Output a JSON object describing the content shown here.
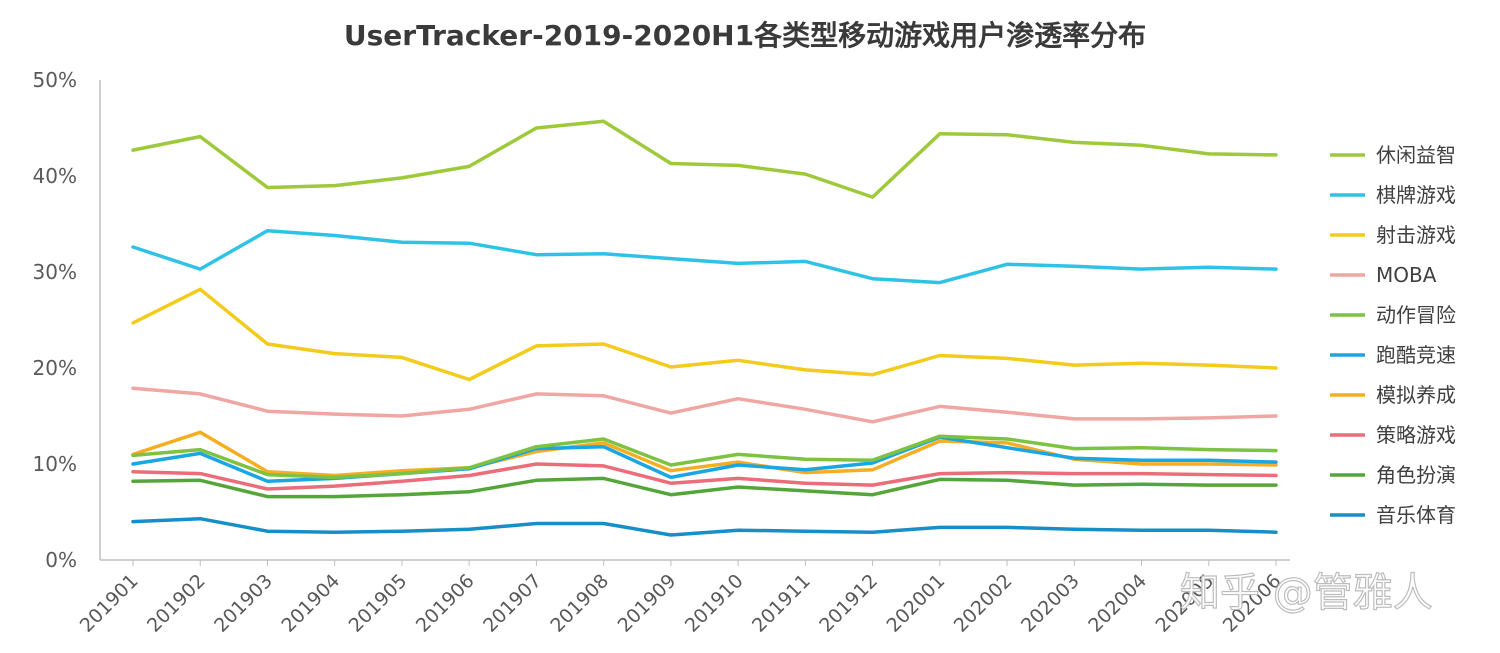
{
  "watermark": "知乎 @管雅人",
  "chart_data": {
    "type": "line",
    "title": "UserTracker-2019-2020H1各类型移动游戏用户渗透率分布",
    "xlabel": "",
    "ylabel": "",
    "ylim": [
      0,
      50
    ],
    "y_ticks": [
      "0%",
      "10%",
      "20%",
      "30%",
      "40%",
      "50%"
    ],
    "grid": false,
    "legend_position": "right",
    "categories": [
      "201901",
      "201902",
      "201903",
      "201904",
      "201905",
      "201906",
      "201907",
      "201908",
      "201909",
      "201910",
      "201911",
      "201912",
      "202001",
      "202002",
      "202003",
      "202004",
      "202005",
      "202006"
    ],
    "series": [
      {
        "name": "休闲益智",
        "color": "#9dc93b",
        "values": [
          42.7,
          44.1,
          38.8,
          39.0,
          39.8,
          41.0,
          45.0,
          45.7,
          41.3,
          41.1,
          40.2,
          37.8,
          44.4,
          44.3,
          43.5,
          43.2,
          42.3,
          42.2
        ]
      },
      {
        "name": "棋牌游戏",
        "color": "#2ec3e6",
        "values": [
          32.6,
          30.3,
          34.3,
          33.8,
          33.1,
          33.0,
          31.8,
          31.9,
          31.4,
          30.9,
          31.1,
          29.3,
          28.9,
          30.8,
          30.6,
          30.3,
          30.5,
          30.3
        ]
      },
      {
        "name": "射击游戏",
        "color": "#f2cb1c",
        "values": [
          24.7,
          28.2,
          22.5,
          21.5,
          21.1,
          18.8,
          22.3,
          22.5,
          20.1,
          20.8,
          19.8,
          19.3,
          21.3,
          21.0,
          20.3,
          20.5,
          20.3,
          20.0
        ]
      },
      {
        "name": "MOBA",
        "color": "#f0a6a2",
        "values": [
          17.9,
          17.3,
          15.5,
          15.2,
          15.0,
          15.7,
          17.3,
          17.1,
          15.3,
          16.8,
          15.7,
          14.4,
          16.0,
          15.4,
          14.7,
          14.7,
          14.8,
          15.0
        ]
      },
      {
        "name": "动作冒险",
        "color": "#7ec242",
        "values": [
          10.9,
          11.5,
          8.9,
          8.6,
          9.0,
          9.6,
          11.8,
          12.6,
          9.9,
          11.0,
          10.5,
          10.4,
          12.9,
          12.6,
          11.6,
          11.7,
          11.5,
          11.4
        ]
      },
      {
        "name": "跑酷竞速",
        "color": "#1aa6e3",
        "values": [
          10.0,
          11.1,
          8.2,
          8.5,
          9.0,
          9.5,
          11.6,
          11.8,
          8.6,
          9.9,
          9.4,
          10.1,
          12.8,
          11.7,
          10.6,
          10.4,
          10.4,
          10.2
        ]
      },
      {
        "name": "模拟养成",
        "color": "#f5ae21",
        "values": [
          11.0,
          13.3,
          9.2,
          8.8,
          9.3,
          9.6,
          11.3,
          12.2,
          9.3,
          10.2,
          9.1,
          9.4,
          12.4,
          12.2,
          10.5,
          10.0,
          10.0,
          9.9
        ]
      },
      {
        "name": "策略游戏",
        "color": "#ea6d79",
        "values": [
          9.2,
          9.0,
          7.4,
          7.7,
          8.2,
          8.8,
          10.0,
          9.8,
          8.0,
          8.5,
          8.0,
          7.8,
          9.0,
          9.1,
          9.0,
          9.0,
          8.9,
          8.8
        ]
      },
      {
        "name": "角色扮演",
        "color": "#55a63a",
        "values": [
          8.2,
          8.3,
          6.6,
          6.6,
          6.8,
          7.1,
          8.3,
          8.5,
          6.8,
          7.6,
          7.2,
          6.8,
          8.4,
          8.3,
          7.8,
          7.9,
          7.8,
          7.8
        ]
      },
      {
        "name": "音乐体育",
        "color": "#168ec7",
        "values": [
          4.0,
          4.3,
          3.0,
          2.9,
          3.0,
          3.2,
          3.8,
          3.8,
          2.6,
          3.1,
          3.0,
          2.9,
          3.4,
          3.4,
          3.2,
          3.1,
          3.1,
          2.9
        ]
      }
    ]
  }
}
